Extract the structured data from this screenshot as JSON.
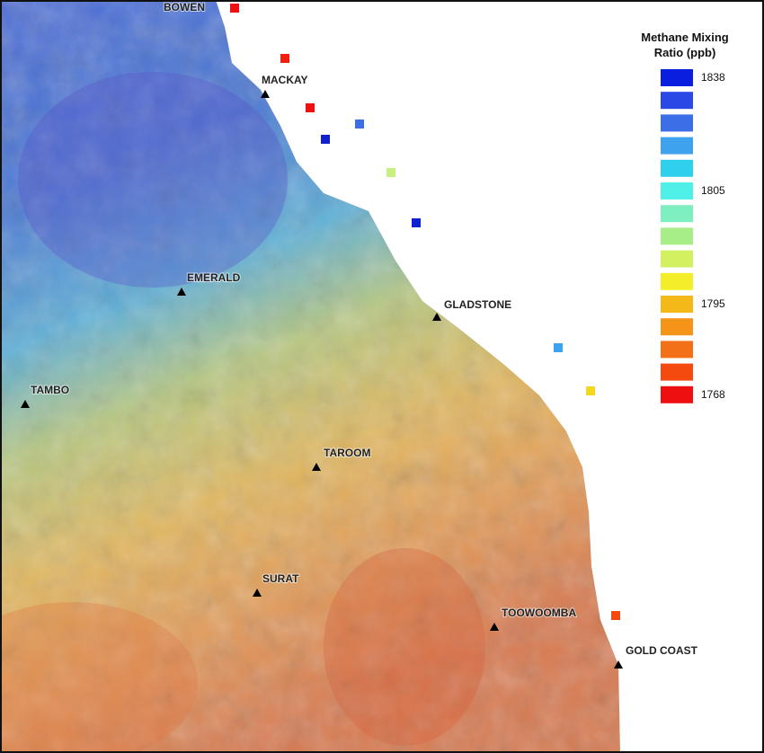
{
  "legend": {
    "title": "Methane Mixing Ratio (ppb)",
    "colors": [
      "#0a1ee0",
      "#2a48e6",
      "#3c6ee8",
      "#3ea2ee",
      "#2fd0ee",
      "#4ef0e8",
      "#7ef0c0",
      "#a8ee88",
      "#d2f060",
      "#f4ee2a",
      "#f4b818",
      "#f49418",
      "#f47018",
      "#f44a10",
      "#ee1010"
    ],
    "labels": [
      "1838",
      null,
      null,
      null,
      null,
      "1805",
      null,
      null,
      null,
      null,
      "1795",
      null,
      null,
      null,
      "1768"
    ]
  },
  "towns": [
    {
      "name": "BOWEN"
    },
    {
      "name": "MACKAY"
    },
    {
      "name": "EMERALD"
    },
    {
      "name": "GLADSTONE"
    },
    {
      "name": "TAMBO"
    },
    {
      "name": "TAROOM"
    },
    {
      "name": "SURAT"
    },
    {
      "name": "TOOWOOMBA"
    },
    {
      "name": "GOLD COAST"
    }
  ]
}
